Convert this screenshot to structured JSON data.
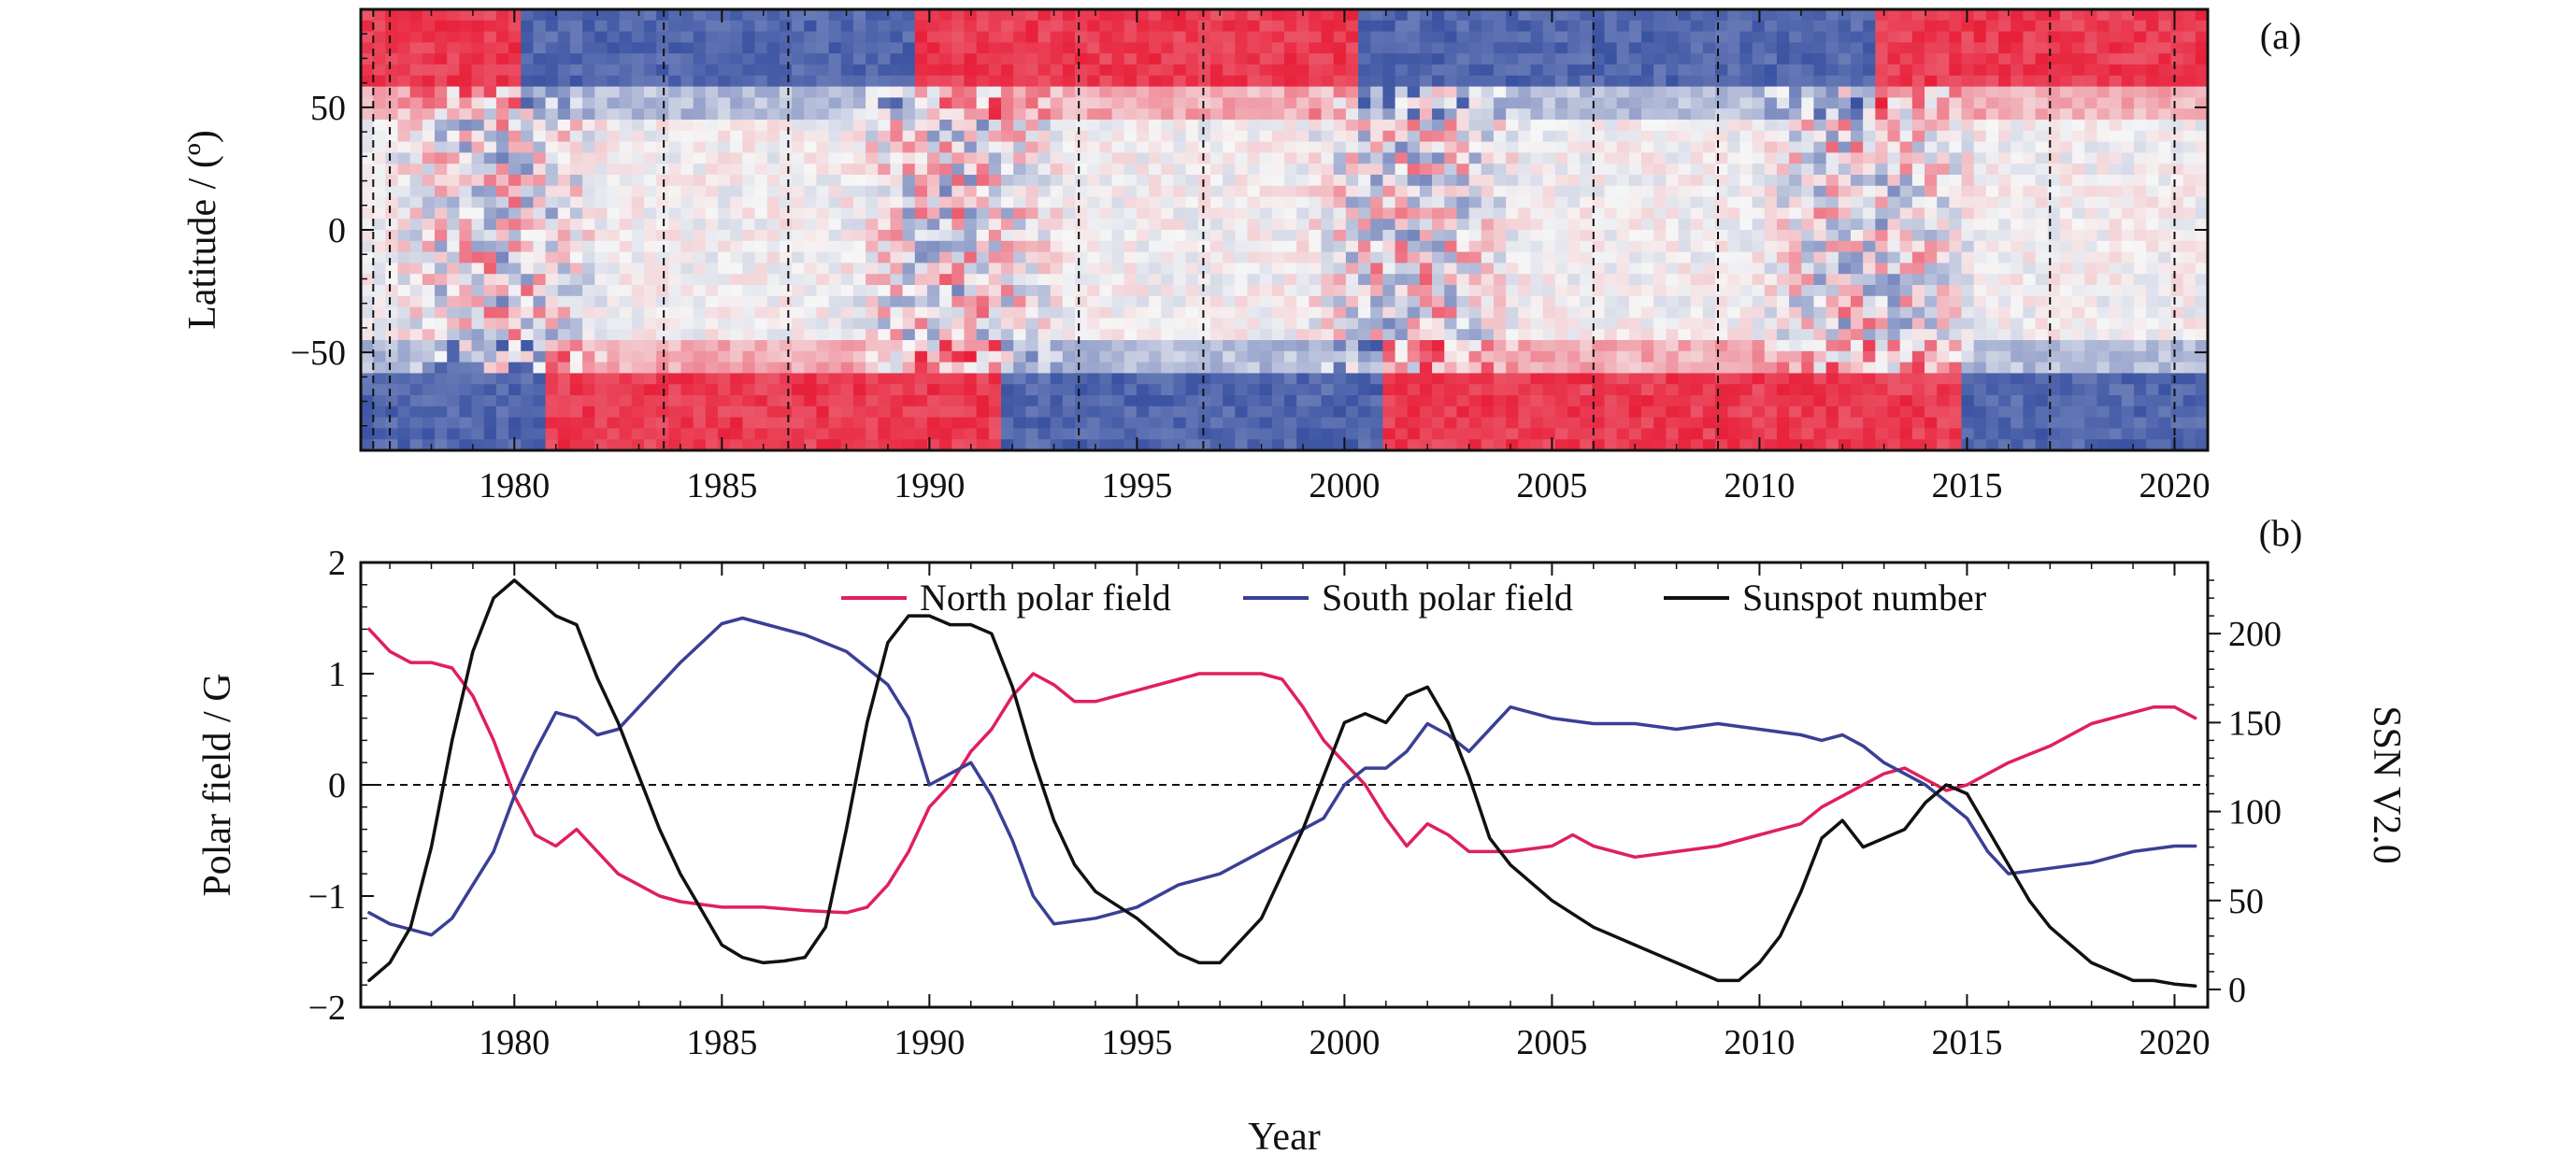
{
  "figure": {
    "panel_a_label": "(a)",
    "panel_b_label": "(b)",
    "xlabel": "Year"
  },
  "chart_data": [
    {
      "type": "heatmap",
      "panel": "a",
      "title": "",
      "xlabel": "",
      "ylabel": "Latitude / (º)",
      "xlim": [
        1976.3,
        2020.8
      ],
      "ylim": [
        -90,
        90
      ],
      "x_ticks": [
        "1980",
        "1985",
        "1990",
        "1995",
        "2000",
        "2005",
        "2010",
        "2015",
        "2020"
      ],
      "y_ticks": [
        "50",
        "0",
        "−50"
      ],
      "colormap": {
        "positive": "#e8203a",
        "zero": "#f6f6f6",
        "negative": "#3a52a2"
      },
      "polar_bands": {
        "north_lat_min": 60,
        "south_lat_max": -60,
        "north_polarity": [
          {
            "from": 1976.3,
            "to": 1980.2,
            "sign": 1
          },
          {
            "from": 1980.2,
            "to": 1989.6,
            "sign": -1
          },
          {
            "from": 1989.6,
            "to": 2000.2,
            "sign": 1
          },
          {
            "from": 2000.2,
            "to": 2012.8,
            "sign": -1
          },
          {
            "from": 2012.8,
            "to": 2020.8,
            "sign": 1
          }
        ],
        "south_polarity": [
          {
            "from": 1976.3,
            "to": 1980.8,
            "sign": -1
          },
          {
            "from": 1980.8,
            "to": 1991.8,
            "sign": 1
          },
          {
            "from": 1991.8,
            "to": 2001.0,
            "sign": -1
          },
          {
            "from": 2001.0,
            "to": 2015.0,
            "sign": 1
          },
          {
            "from": 2015.0,
            "to": 2020.8,
            "sign": -1
          }
        ]
      },
      "vertical_dashed_lines": [
        1976.6,
        1977.0,
        1983.6,
        1986.6,
        1993.6,
        1996.6,
        2006.0,
        2009.0,
        2017.0,
        2020.0
      ]
    },
    {
      "type": "line",
      "panel": "b",
      "title": "",
      "xlabel": "Year",
      "ylabel": "Polar field / G",
      "y2label": "SSN V2.0",
      "xlim": [
        1976.3,
        2020.8
      ],
      "ylim": [
        -2,
        2
      ],
      "y2lim": [
        -10,
        240
      ],
      "x_ticks": [
        "1980",
        "1985",
        "1990",
        "1995",
        "2000",
        "2005",
        "2010",
        "2015",
        "2020"
      ],
      "y_ticks": [
        "2",
        "1",
        "0",
        "−1",
        "−2"
      ],
      "y2_ticks": [
        "200",
        "150",
        "100",
        "50",
        "0"
      ],
      "legend_position": "top",
      "zero_line": "dashed",
      "series": [
        {
          "name": "North polar field",
          "axis": "left",
          "color": "#e0205a",
          "x": [
            1976.5,
            1977.0,
            1977.5,
            1978.0,
            1978.5,
            1979.0,
            1979.5,
            1980.0,
            1980.5,
            1981.0,
            1981.5,
            1982.0,
            1982.5,
            1983.0,
            1983.5,
            1984.0,
            1985.0,
            1986.0,
            1987.0,
            1988.0,
            1988.5,
            1989.0,
            1989.5,
            1990.0,
            1990.5,
            1991.0,
            1991.5,
            1992.0,
            1992.5,
            1993.0,
            1993.5,
            1994.0,
            1995.0,
            1996.0,
            1996.5,
            1997.0,
            1998.0,
            1998.5,
            1999.0,
            1999.5,
            2000.0,
            2000.5,
            2001.0,
            2001.5,
            2002.0,
            2002.5,
            2003.0,
            2004.0,
            2005.0,
            2005.5,
            2006.0,
            2007.0,
            2008.0,
            2009.0,
            2010.0,
            2011.0,
            2011.5,
            2012.0,
            2012.5,
            2013.0,
            2013.5,
            2014.0,
            2014.5,
            2015.0,
            2016.0,
            2017.0,
            2018.0,
            2019.0,
            2019.5,
            2020.0,
            2020.5
          ],
          "y": [
            1.4,
            1.2,
            1.1,
            1.1,
            1.05,
            0.8,
            0.4,
            -0.1,
            -0.45,
            -0.55,
            -0.4,
            -0.6,
            -0.8,
            -0.9,
            -1.0,
            -1.05,
            -1.1,
            -1.1,
            -1.13,
            -1.15,
            -1.1,
            -0.9,
            -0.6,
            -0.2,
            0.0,
            0.3,
            0.5,
            0.8,
            1.0,
            0.9,
            0.75,
            0.75,
            0.85,
            0.95,
            1.0,
            1.0,
            1.0,
            0.95,
            0.7,
            0.4,
            0.2,
            0.0,
            -0.3,
            -0.55,
            -0.35,
            -0.45,
            -0.6,
            -0.6,
            -0.55,
            -0.45,
            -0.55,
            -0.65,
            -0.6,
            -0.55,
            -0.45,
            -0.35,
            -0.2,
            -0.1,
            0.0,
            0.1,
            0.15,
            0.05,
            -0.05,
            0.0,
            0.2,
            0.35,
            0.55,
            0.65,
            0.7,
            0.7,
            0.6
          ]
        },
        {
          "name": "South polar field",
          "axis": "left",
          "color": "#3a3f96",
          "x": [
            1976.5,
            1977.0,
            1977.5,
            1978.0,
            1978.5,
            1979.0,
            1979.5,
            1980.0,
            1980.5,
            1981.0,
            1981.5,
            1982.0,
            1982.5,
            1983.0,
            1983.5,
            1984.0,
            1985.0,
            1985.5,
            1986.0,
            1987.0,
            1988.0,
            1989.0,
            1989.5,
            1990.0,
            1990.5,
            1991.0,
            1991.5,
            1992.0,
            1992.5,
            1993.0,
            1994.0,
            1995.0,
            1996.0,
            1997.0,
            1998.0,
            1999.0,
            1999.5,
            2000.0,
            2000.5,
            2001.0,
            2001.5,
            2002.0,
            2002.5,
            2003.0,
            2003.5,
            2004.0,
            2005.0,
            2006.0,
            2007.0,
            2008.0,
            2009.0,
            2010.0,
            2011.0,
            2011.5,
            2012.0,
            2012.5,
            2013.0,
            2013.5,
            2014.0,
            2014.5,
            2015.0,
            2015.5,
            2016.0,
            2017.0,
            2018.0,
            2019.0,
            2020.0,
            2020.5
          ],
          "y": [
            -1.15,
            -1.25,
            -1.3,
            -1.35,
            -1.2,
            -0.9,
            -0.6,
            -0.1,
            0.3,
            0.65,
            0.6,
            0.45,
            0.5,
            0.7,
            0.9,
            1.1,
            1.45,
            1.5,
            1.45,
            1.35,
            1.2,
            0.9,
            0.6,
            0.0,
            0.1,
            0.2,
            -0.1,
            -0.5,
            -1.0,
            -1.25,
            -1.2,
            -1.1,
            -0.9,
            -0.8,
            -0.6,
            -0.4,
            -0.3,
            0.0,
            0.15,
            0.15,
            0.3,
            0.55,
            0.45,
            0.3,
            0.5,
            0.7,
            0.6,
            0.55,
            0.55,
            0.5,
            0.55,
            0.5,
            0.45,
            0.4,
            0.45,
            0.35,
            0.2,
            0.1,
            0.0,
            -0.15,
            -0.3,
            -0.6,
            -0.8,
            -0.75,
            -0.7,
            -0.6,
            -0.55,
            -0.55
          ]
        },
        {
          "name": "Sunspot number",
          "axis": "right",
          "color": "#111111",
          "x": [
            1976.5,
            1977.0,
            1977.5,
            1978.0,
            1978.5,
            1979.0,
            1979.5,
            1980.0,
            1980.5,
            1981.0,
            1981.5,
            1982.0,
            1982.5,
            1983.0,
            1983.5,
            1984.0,
            1984.5,
            1985.0,
            1985.5,
            1986.0,
            1986.5,
            1987.0,
            1987.5,
            1988.0,
            1988.5,
            1989.0,
            1989.5,
            1990.0,
            1990.5,
            1991.0,
            1991.5,
            1992.0,
            1992.5,
            1993.0,
            1993.5,
            1994.0,
            1995.0,
            1996.0,
            1996.5,
            1997.0,
            1998.0,
            1999.0,
            1999.5,
            2000.0,
            2000.5,
            2001.0,
            2001.5,
            2002.0,
            2002.5,
            2003.0,
            2003.5,
            2004.0,
            2005.0,
            2006.0,
            2007.0,
            2008.0,
            2008.5,
            2009.0,
            2009.5,
            2010.0,
            2010.5,
            2011.0,
            2011.5,
            2012.0,
            2012.5,
            2013.0,
            2013.5,
            2014.0,
            2014.5,
            2015.0,
            2015.5,
            2016.0,
            2016.5,
            2017.0,
            2017.5,
            2018.0,
            2018.5,
            2019.0,
            2019.5,
            2020.0,
            2020.5
          ],
          "y": [
            5,
            15,
            35,
            80,
            140,
            190,
            220,
            230,
            220,
            210,
            205,
            175,
            150,
            120,
            90,
            65,
            45,
            25,
            18,
            15,
            16,
            18,
            35,
            90,
            150,
            195,
            210,
            210,
            205,
            205,
            200,
            170,
            130,
            95,
            70,
            55,
            40,
            20,
            15,
            15,
            40,
            90,
            120,
            150,
            155,
            150,
            165,
            170,
            150,
            120,
            85,
            70,
            50,
            35,
            25,
            15,
            10,
            5,
            5,
            15,
            30,
            55,
            85,
            95,
            80,
            85,
            90,
            105,
            115,
            110,
            90,
            70,
            50,
            35,
            25,
            15,
            10,
            5,
            5,
            3,
            2
          ]
        }
      ]
    }
  ]
}
